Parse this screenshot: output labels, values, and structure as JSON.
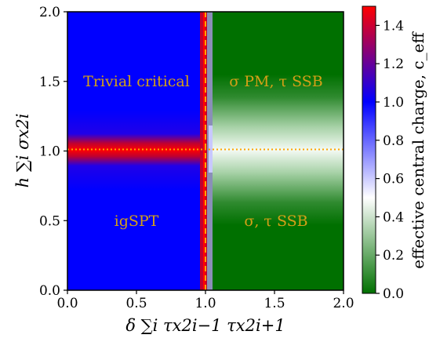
{
  "chart_data": {
    "type": "heatmap",
    "title": "",
    "xlabel": "δ ∑i τx2i−1 τx2i+1",
    "ylabel": "h ∑i σx2i",
    "xlim": [
      0.0,
      2.0
    ],
    "ylim": [
      0.0,
      2.0
    ],
    "xticks": [
      "0.0",
      "0.5",
      "1.0",
      "1.5",
      "2.0"
    ],
    "yticks": [
      "0.0",
      "0.5",
      "1.0",
      "1.5",
      "2.0"
    ],
    "colorbar": {
      "label": "effective central charge, c_eff",
      "range": [
        0.0,
        1.5
      ],
      "ticks": [
        "0.0",
        "0.2",
        "0.4",
        "0.6",
        "0.8",
        "1.0",
        "1.2",
        "1.4"
      ],
      "colormap": [
        "#007000",
        "#ffffff",
        "#0000ff",
        "#ff0000"
      ]
    },
    "regions": [
      {
        "label": "Trivial critical",
        "x": 0.5,
        "y": 1.5,
        "c_eff": 1.0
      },
      {
        "label": "σ PM, τ SSB",
        "x": 1.5,
        "y": 1.5,
        "c_eff": 0.0
      },
      {
        "label": "igSPT",
        "x": 0.5,
        "y": 0.5,
        "c_eff": 1.0
      },
      {
        "label": "σ, τ SSB",
        "x": 1.5,
        "y": 0.5,
        "c_eff": 0.0
      }
    ],
    "critical_lines": [
      {
        "orientation": "vertical",
        "value": 1.0,
        "c_eff": 1.5
      },
      {
        "orientation": "horizontal",
        "value": 1.0,
        "c_eff_left": 1.5,
        "c_eff_right": 0.5
      }
    ],
    "guide_lines": [
      {
        "orientation": "horizontal",
        "value": 1.0,
        "style": "dotted",
        "color": "#ffa500"
      },
      {
        "orientation": "vertical",
        "value": 1.0,
        "style": "dashed",
        "color": "#ffa500"
      }
    ]
  }
}
